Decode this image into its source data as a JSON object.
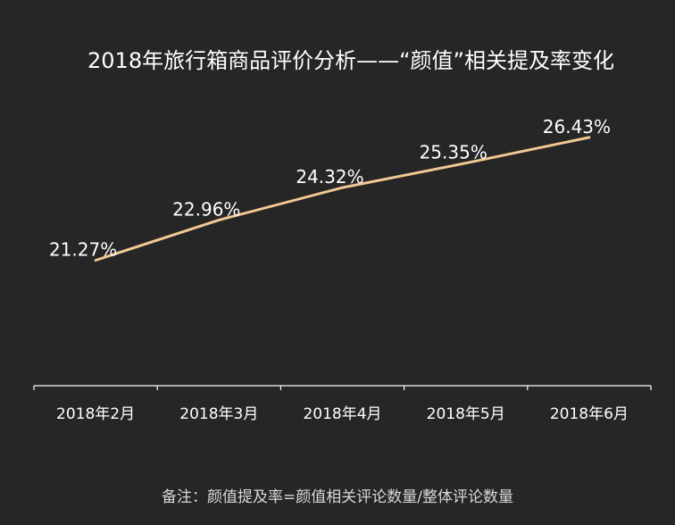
{
  "chart_data": {
    "type": "line",
    "title": "2018年旅行箱商品评价分析——“颜值”相关提及率变化",
    "categories": [
      "2018年2月",
      "2018年3月",
      "2018年4月",
      "2018年5月",
      "2018年6月"
    ],
    "series": [
      {
        "values": [
          21.27,
          22.96,
          24.32,
          25.35,
          26.43
        ],
        "labels": [
          "21.27%",
          "22.96%",
          "24.32%",
          "25.35%",
          "26.43%"
        ],
        "color": "#f2c894"
      }
    ],
    "ylim": [
      16,
      28
    ],
    "grid": false,
    "axis_color": "#ffffff",
    "background": "#262626"
  },
  "footnote": "备注：颜值提及率=颜值相关评论数量/整体评论数量"
}
